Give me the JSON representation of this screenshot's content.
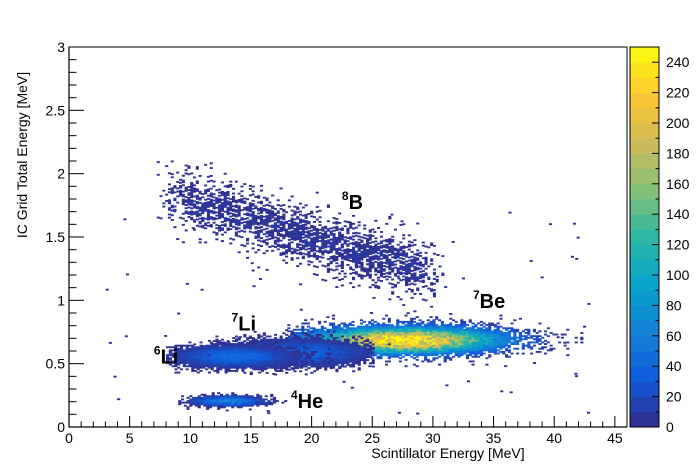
{
  "chart_data": {
    "type": "heatmap",
    "xlabel": "Scintillator Energy [MeV]",
    "ylabel": "IC Grid Total Energy [MeV]",
    "xlim": [
      0,
      46
    ],
    "ylim": [
      0,
      3
    ],
    "x_ticks": [
      0,
      5,
      10,
      15,
      20,
      25,
      30,
      35,
      40,
      45
    ],
    "x_tick_labels": [
      "0",
      "5",
      "10",
      "15",
      "20",
      "25",
      "30",
      "35",
      "40",
      "45"
    ],
    "y_ticks": [
      0,
      0.5,
      1,
      1.5,
      2,
      2.5,
      3
    ],
    "y_tick_labels": [
      "0",
      "0.5",
      "1",
      "1.5",
      "2",
      "2.5",
      "3"
    ],
    "colorbar": {
      "min": 0,
      "max": 250,
      "ticks": [
        0,
        20,
        40,
        60,
        80,
        100,
        120,
        140,
        160,
        180,
        200,
        220,
        240
      ],
      "tick_labels": [
        "0",
        "20",
        "40",
        "60",
        "80",
        "100",
        "120",
        "140",
        "160",
        "180",
        "200",
        "220",
        "240"
      ],
      "colormap": [
        "#352a87",
        "#0f5cdd",
        "#1481d6",
        "#06a4ca",
        "#2eb7a4",
        "#87bf77",
        "#d1bb59",
        "#fec832",
        "#f9fb0e"
      ]
    },
    "annotations": [
      {
        "text": "B",
        "mass": "8",
        "x": 22.5,
        "y": 1.72
      },
      {
        "text": "Be",
        "mass": "7",
        "x": 33.3,
        "y": 0.94
      },
      {
        "text": "Li",
        "mass": "7",
        "x": 13.4,
        "y": 0.76
      },
      {
        "text": "Li",
        "mass": "6",
        "x": 7.0,
        "y": 0.5
      },
      {
        "text": "He",
        "mass": "4",
        "x": 18.3,
        "y": 0.15
      }
    ],
    "clusters": [
      {
        "name": "8B",
        "x_range": [
          7,
          31
        ],
        "y_at_xmin": 1.85,
        "y_at_xmax": 1.18,
        "sigma_y": 0.12,
        "density": 0.18
      },
      {
        "name": "7Be",
        "center": [
          27.5,
          0.68
        ],
        "x_range": [
          18,
          43
        ],
        "sigma_x": 5.0,
        "sigma_y": 0.065,
        "peak": 245
      },
      {
        "name": "7Li",
        "center": [
          18.5,
          0.58
        ],
        "x_range": [
          10,
          25
        ],
        "sigma_x": 3.5,
        "sigma_y": 0.06,
        "peak": 40
      },
      {
        "name": "6Li",
        "center": [
          13.5,
          0.55
        ],
        "x_range": [
          8,
          23
        ],
        "sigma_x": 2.8,
        "sigma_y": 0.05,
        "peak": 45
      },
      {
        "name": "4He",
        "center": [
          13.0,
          0.2
        ],
        "x_range": [
          9,
          18
        ],
        "sigma_x": 1.8,
        "sigma_y": 0.025,
        "peak": 60
      }
    ]
  }
}
